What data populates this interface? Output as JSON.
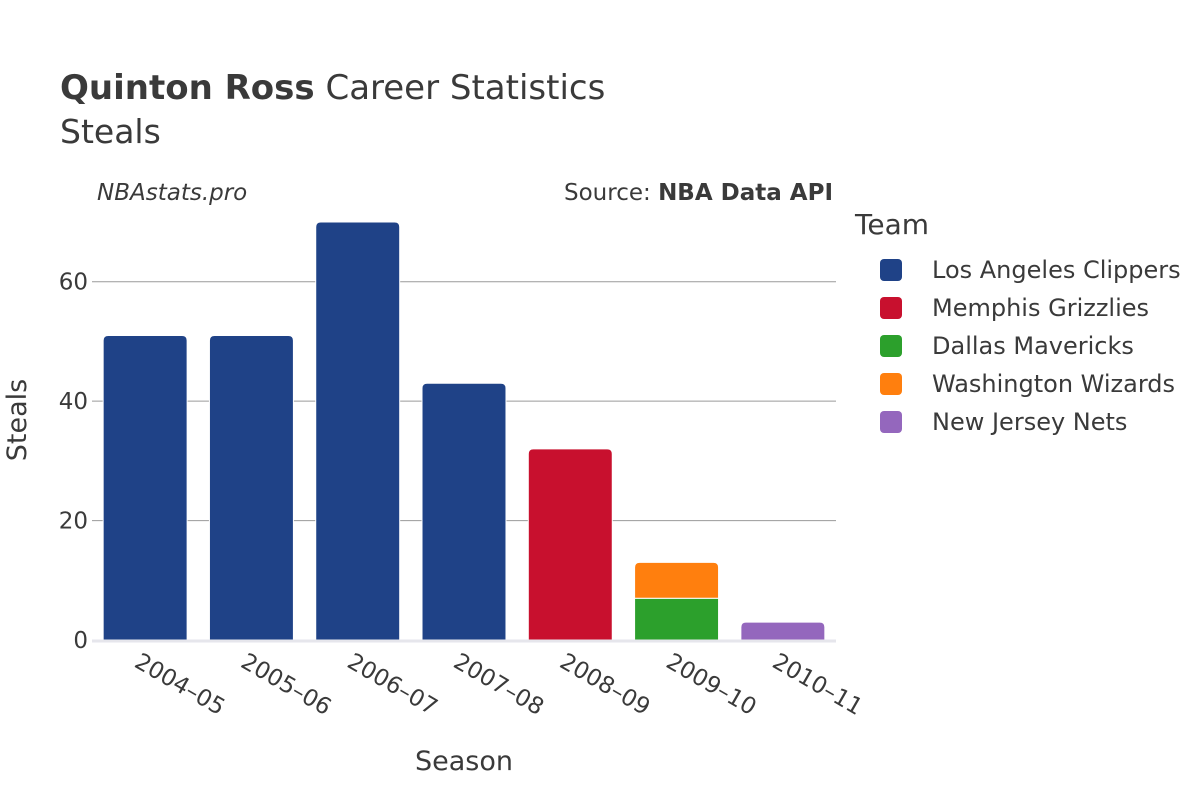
{
  "header": {
    "title_bold": "Quinton Ross",
    "title_rest": " Career Statistics",
    "subtitle": "Steals"
  },
  "watermark": "NBAstats.pro",
  "source": {
    "prefix": "Source: ",
    "name": "NBA Data API"
  },
  "legend": {
    "title": "Team",
    "items": [
      {
        "label": "Los Angeles Clippers",
        "color": "#1f4287"
      },
      {
        "label": "Memphis Grizzlies",
        "color": "#c8102e"
      },
      {
        "label": "Dallas Mavericks",
        "color": "#2ca02c"
      },
      {
        "label": "Washington Wizards",
        "color": "#ff7f0e"
      },
      {
        "label": "New Jersey Nets",
        "color": "#9467bd"
      }
    ]
  },
  "chart_data": {
    "type": "bar",
    "stacked": true,
    "xlabel": "Season",
    "ylabel": "Steals",
    "ylim": [
      0,
      70
    ],
    "yticks": [
      0,
      20,
      40,
      60
    ],
    "grid": true,
    "categories": [
      "2004–05",
      "2005–06",
      "2006–07",
      "2007–08",
      "2008–09",
      "2009–10",
      "2010–11"
    ],
    "series": [
      {
        "name": "Los Angeles Clippers",
        "color": "#1f4287",
        "values": [
          51,
          51,
          70,
          43,
          0,
          0,
          0
        ]
      },
      {
        "name": "Memphis Grizzlies",
        "color": "#c8102e",
        "values": [
          0,
          0,
          0,
          0,
          32,
          0,
          0
        ]
      },
      {
        "name": "Dallas Mavericks",
        "color": "#2ca02c",
        "values": [
          0,
          0,
          0,
          0,
          0,
          7,
          0
        ]
      },
      {
        "name": "Washington Wizards",
        "color": "#ff7f0e",
        "values": [
          0,
          0,
          0,
          0,
          0,
          6,
          0
        ]
      },
      {
        "name": "New Jersey Nets",
        "color": "#9467bd",
        "values": [
          0,
          0,
          0,
          0,
          0,
          0,
          3
        ]
      }
    ]
  }
}
